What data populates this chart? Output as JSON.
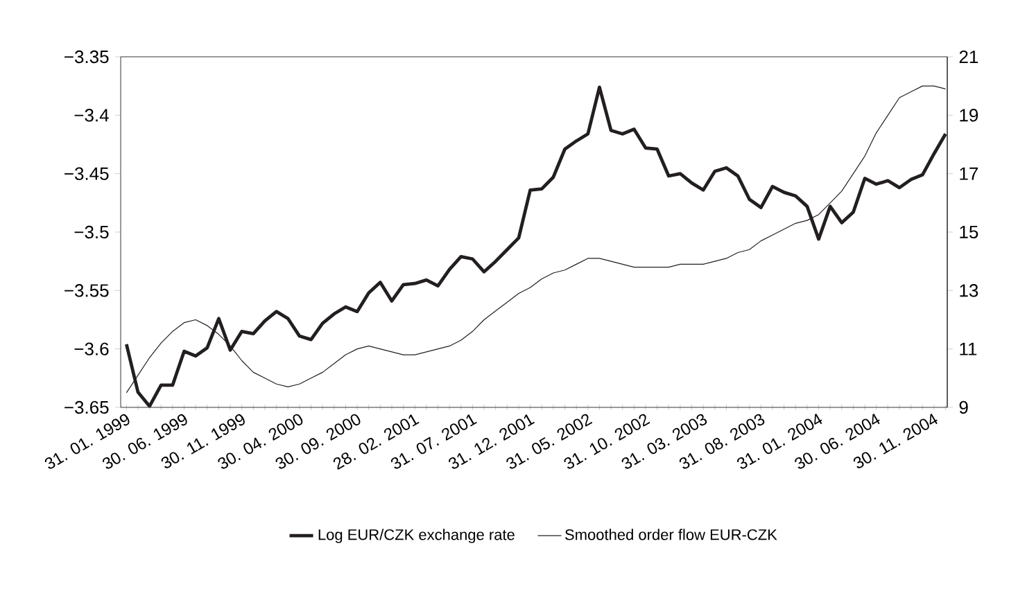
{
  "chart_data": {
    "type": "line",
    "categories": [
      "31. 01. 1999",
      null,
      null,
      null,
      null,
      "30. 06. 1999",
      null,
      null,
      null,
      null,
      "30. 11. 1999",
      null,
      null,
      null,
      null,
      "30. 04. 2000",
      null,
      null,
      null,
      null,
      "30. 09. 2000",
      null,
      null,
      null,
      null,
      "28. 02. 2001",
      null,
      null,
      null,
      null,
      "31. 07. 2001",
      null,
      null,
      null,
      null,
      "31. 12. 2001",
      null,
      null,
      null,
      null,
      "31. 05. 2002",
      null,
      null,
      null,
      null,
      "31. 10. 2002",
      null,
      null,
      null,
      null,
      "31. 03. 2003",
      null,
      null,
      null,
      null,
      "31. 08. 2003",
      null,
      null,
      null,
      null,
      "31. 01. 2004",
      null,
      null,
      null,
      null,
      "30. 06. 2004",
      null,
      null,
      null,
      null,
      "30. 11. 2004",
      null
    ],
    "series": [
      {
        "name": "Log EUR/CZK exchange rate",
        "color": "#231f20",
        "axis": "y",
        "values": [
          -3.596,
          -3.637,
          -3.649,
          -3.631,
          -3.631,
          -3.602,
          -3.606,
          -3.599,
          -3.574,
          -3.601,
          -3.585,
          -3.587,
          -3.576,
          -3.568,
          -3.574,
          -3.589,
          -3.592,
          -3.578,
          -3.57,
          -3.564,
          -3.568,
          -3.552,
          -3.543,
          -3.559,
          -3.545,
          -3.544,
          -3.541,
          -3.546,
          -3.532,
          -3.521,
          -3.523,
          -3.534,
          -3.525,
          -3.515,
          -3.505,
          -3.464,
          -3.463,
          -3.453,
          -3.429,
          -3.422,
          -3.416,
          -3.376,
          -3.413,
          -3.416,
          -3.412,
          -3.428,
          -3.429,
          -3.452,
          -3.45,
          -3.458,
          -3.464,
          -3.448,
          -3.445,
          -3.452,
          -3.472,
          -3.479,
          -3.461,
          -3.466,
          -3.469,
          -3.478,
          -3.506,
          -3.478,
          -3.492,
          -3.483,
          -3.454,
          -3.459,
          -3.456,
          -3.462,
          -3.455,
          -3.451,
          -3.433,
          -3.416
        ]
      },
      {
        "name": "Smoothed order flow EUR-CZK",
        "color": "#231f20",
        "axis": "y2",
        "values": [
          9.5,
          10.1,
          10.7,
          11.2,
          11.6,
          11.9,
          12.0,
          11.8,
          11.5,
          11.1,
          10.6,
          10.2,
          10.0,
          9.8,
          9.7,
          9.8,
          10.0,
          10.2,
          10.5,
          10.8,
          11.0,
          11.1,
          11.0,
          10.9,
          10.8,
          10.8,
          10.9,
          11.0,
          11.1,
          11.3,
          11.6,
          12.0,
          12.3,
          12.6,
          12.9,
          13.1,
          13.4,
          13.6,
          13.7,
          13.9,
          14.1,
          14.1,
          14.0,
          13.9,
          13.8,
          13.8,
          13.8,
          13.8,
          13.9,
          13.9,
          13.9,
          14.0,
          14.1,
          14.3,
          14.4,
          14.7,
          14.9,
          15.1,
          15.3,
          15.4,
          15.6,
          16.0,
          16.4,
          17.0,
          17.6,
          18.4,
          19.0,
          19.6,
          19.8,
          20.0,
          20.0,
          19.9
        ]
      }
    ],
    "ylim": [
      -3.65,
      -3.35
    ],
    "yticks": [
      {
        "value": -3.65,
        "label": "−3.65"
      },
      {
        "value": -3.6,
        "label": "−3.6"
      },
      {
        "value": -3.55,
        "label": "−3.55"
      },
      {
        "value": -3.5,
        "label": "−3.5"
      },
      {
        "value": -3.45,
        "label": "−3.45"
      },
      {
        "value": -3.4,
        "label": "−3.4"
      },
      {
        "value": -3.35,
        "label": "−3.35"
      }
    ],
    "y2lim": [
      9,
      21
    ],
    "y2ticks": [
      9,
      11,
      13,
      15,
      17,
      19,
      21
    ],
    "legend": "bottom"
  }
}
